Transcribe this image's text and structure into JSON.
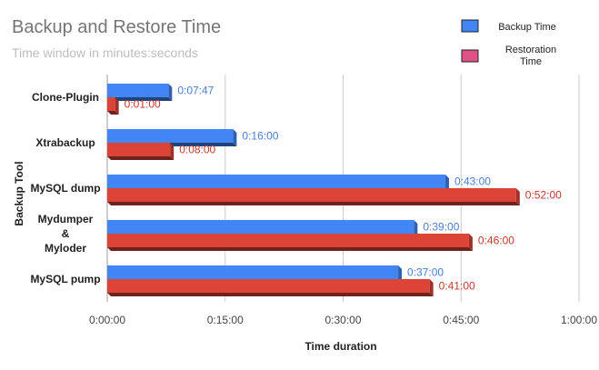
{
  "chart_data": {
    "type": "bar",
    "orientation": "horizontal",
    "style": "3d",
    "title": "Backup and Restore Time",
    "subtitle": "Time window in minutes:seconds",
    "xlabel": "Time duration",
    "ylabel": "Backup Tool",
    "x_unit": "minutes",
    "xlim": [
      0,
      60
    ],
    "x_ticks": [
      0,
      15,
      30,
      45,
      60
    ],
    "x_tick_labels": [
      "0:00:00",
      "0:15:00",
      "0:30:00",
      "0:45:00",
      "1:00:00"
    ],
    "categories": [
      [
        "Clone-Plugin"
      ],
      [
        "Xtrabackup"
      ],
      [
        "MySQL dump"
      ],
      [
        "Mydumper",
        "&",
        "Myloder"
      ],
      [
        "MySQL pump"
      ]
    ],
    "series": [
      {
        "name": "Backup Time",
        "color": "#4285f4",
        "values": [
          7.783,
          16,
          43,
          39,
          37
        ],
        "labels": [
          "0:07:47",
          "0:16:00",
          "0:43:00",
          "0:39:00",
          "0:37:00"
        ]
      },
      {
        "name": "Restoration Time",
        "color": "#db4437",
        "values": [
          1,
          8,
          52,
          46,
          41
        ],
        "labels": [
          "0:01:00",
          "0:08:00",
          "0:52:00",
          "0:46:00",
          "0:41:00"
        ]
      }
    ],
    "legend": {
      "position": "top-right",
      "entries": [
        {
          "lines": [
            "Backup Time"
          ],
          "color": "#4285f4"
        },
        {
          "lines": [
            "Restoration",
            "Time"
          ],
          "color": "#e05287"
        }
      ]
    },
    "grid": true
  }
}
